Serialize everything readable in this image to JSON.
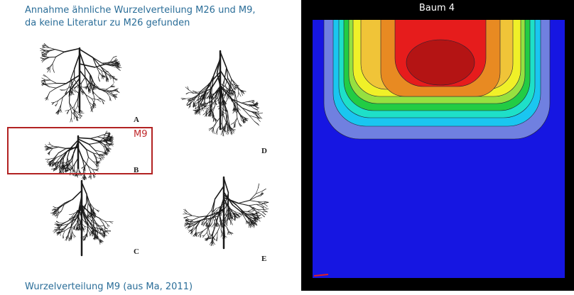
{
  "note_text": {
    "lines": [
      "Annahme ähnliche Wurzelverteilung M26 und M9,",
      "da keine Literatur zu M26 gefunden"
    ]
  },
  "figure_left": {
    "labels": [
      "A",
      "B",
      "C",
      "D",
      "E"
    ],
    "highlight_label": "M9",
    "caption": "Wurzelverteilung M9 (aus Ma, 2011)"
  },
  "figure_right": {
    "title": "Baum 4"
  }
}
